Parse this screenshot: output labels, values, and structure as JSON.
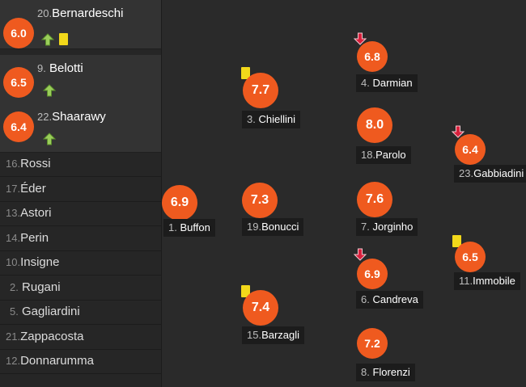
{
  "substitutes": [
    {
      "number": "20.",
      "name": "Bernardeschi",
      "rating": "6.0",
      "icons": [
        "sub-in-arrow",
        "yellow-card"
      ]
    },
    {
      "number": "9.",
      "name": "Belotti",
      "rating": "6.5",
      "icons": [
        "sub-in-arrow"
      ]
    },
    {
      "number": "22.",
      "name": "Shaarawy",
      "rating": "6.4",
      "icons": [
        "sub-in-arrow"
      ]
    }
  ],
  "bench": [
    {
      "number": "16.",
      "name": "Rossi"
    },
    {
      "number": "17.",
      "name": "Éder"
    },
    {
      "number": "13.",
      "name": "Astori"
    },
    {
      "number": "14.",
      "name": "Perin"
    },
    {
      "number": "10.",
      "name": "Insigne"
    },
    {
      "number": "2.",
      "name": "Rugani"
    },
    {
      "number": "5.",
      "name": "Gagliardini"
    },
    {
      "number": "21.",
      "name": "Zappacosta"
    },
    {
      "number": "12.",
      "name": "Donnarumma"
    }
  ],
  "lineup": [
    {
      "number": "1.",
      "name": "Buffon",
      "rating": "6.9"
    },
    {
      "number": "3.",
      "name": "Chiellini",
      "rating": "7.7",
      "icons": [
        "yellow-card"
      ]
    },
    {
      "number": "19.",
      "name": "Bonucci",
      "rating": "7.3"
    },
    {
      "number": "15.",
      "name": "Barzagli",
      "rating": "7.4",
      "icons": [
        "yellow-card"
      ]
    },
    {
      "number": "4.",
      "name": "Darmian",
      "rating": "6.8",
      "icons": [
        "sub-out-arrow"
      ]
    },
    {
      "number": "18.",
      "name": "Parolo",
      "rating": "8.0"
    },
    {
      "number": "7.",
      "name": "Jorginho",
      "rating": "7.6"
    },
    {
      "number": "6.",
      "name": "Candreva",
      "rating": "6.9",
      "icons": [
        "sub-out-arrow"
      ]
    },
    {
      "number": "8.",
      "name": "Florenzi",
      "rating": "7.2"
    },
    {
      "number": "23.",
      "name": "Gabbiadini",
      "rating": "6.4",
      "icons": [
        "sub-out-arrow"
      ]
    },
    {
      "number": "11.",
      "name": "Immobile",
      "rating": "6.5",
      "icons": [
        "yellow-card"
      ]
    }
  ],
  "colors": {
    "rating": "#ef5a1f",
    "sub_in": "#9acd5a",
    "sub_out": "#d8203c",
    "yellow_card": "#f2d81a"
  }
}
